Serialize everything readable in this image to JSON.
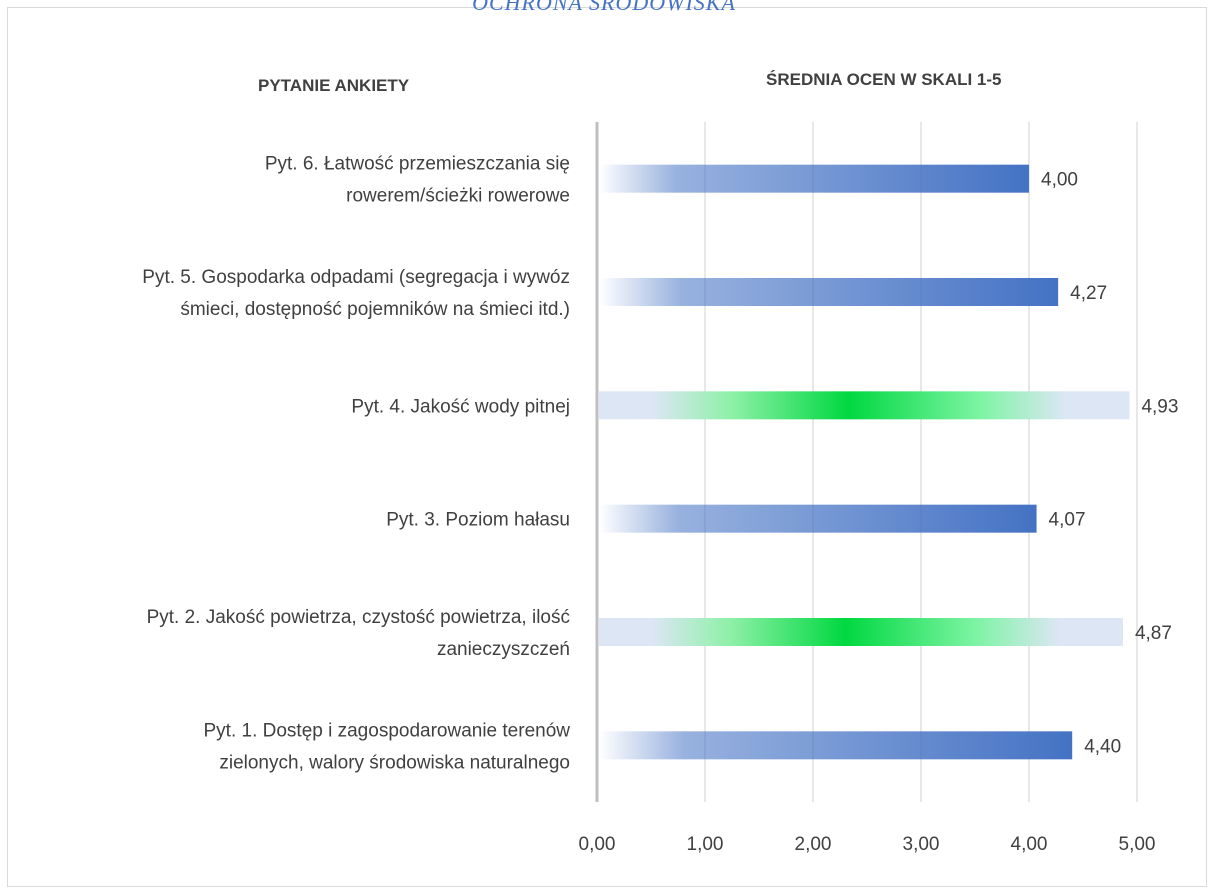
{
  "title": "OCHRONA ŚRODOWISKA",
  "headers": {
    "left": "PYTANIE ANKIETY",
    "right": "ŚREDNIA OCEN W SKALI 1-5"
  },
  "colors": {
    "blue": "#4472c4",
    "green": "#00d840",
    "grid": "#d0d0d0",
    "axis": "#bfbfbf"
  },
  "chart_data": {
    "type": "bar",
    "orientation": "horizontal",
    "categories": [
      [
        "Pyt. 6. Łatwość przemieszczania się",
        "rowerem/ścieżki rowerowe"
      ],
      [
        "Pyt. 5. Gospodarka odpadami (segregacja i wywóz",
        "śmieci, dostępność pojemników na śmieci itd.)"
      ],
      [
        "Pyt. 4. Jakość wody pitnej"
      ],
      [
        "Pyt. 3. Poziom hałasu"
      ],
      [
        "Pyt. 2. Jakość powietrza, czystość powietrza, ilość",
        "zanieczyszczeń"
      ],
      [
        "Pyt. 1. Dostęp i zagospodarowanie terenów",
        "zielonych, walory środowiska naturalnego"
      ]
    ],
    "values": [
      4.0,
      4.27,
      4.93,
      4.07,
      4.87,
      4.4
    ],
    "data_labels": [
      "4,00",
      "4,27",
      "4,93",
      "4,07",
      "4,87",
      "4,40"
    ],
    "bar_colors": [
      "blue",
      "blue",
      "green",
      "blue",
      "green",
      "blue"
    ],
    "xlim": [
      0,
      5
    ],
    "ticks": [
      0,
      1,
      2,
      3,
      4,
      5
    ],
    "tick_labels": [
      "0,00",
      "1,00",
      "2,00",
      "3,00",
      "4,00",
      "5,00"
    ],
    "grid": true
  }
}
